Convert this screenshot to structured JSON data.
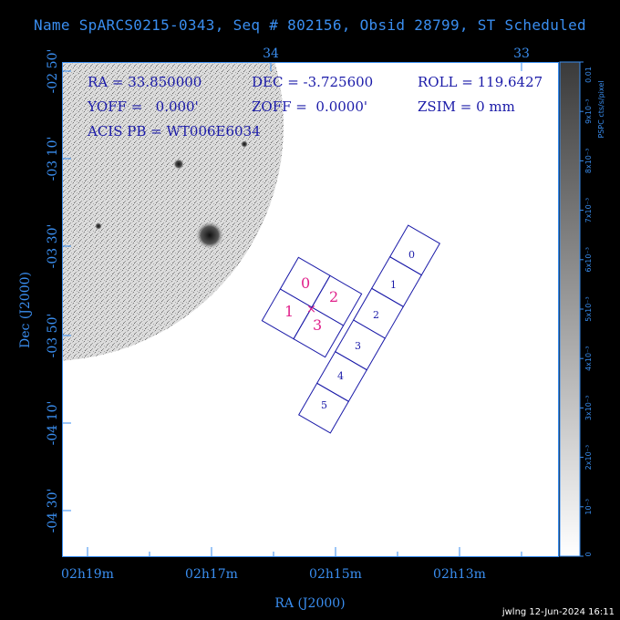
{
  "title": "Name SpARCS0215-0343, Seq # 802156, Obsid 28799, ST Scheduled",
  "info": {
    "ra": "RA = 33.850000",
    "dec": "DEC = -3.725600",
    "roll": "ROLL = 119.6427",
    "yoff": "YOFF =   0.000'",
    "zoff": "ZOFF =  0.0000'",
    "zsim": "ZSIM = 0 mm",
    "acis_pb": "ACIS PB = WT006E6034"
  },
  "axes": {
    "xlabel": "RA (J2000)",
    "ylabel": "Dec (J2000)",
    "x_ticks": [
      "02h19m",
      "02h17m",
      "02h15m",
      "02h13m"
    ],
    "top_ticks": [
      "34",
      "33"
    ],
    "y_ticks": [
      "-02 50'",
      "-03 10'",
      "-03 30'",
      "-03 50'",
      "-04 10'",
      "-04 30'"
    ]
  },
  "ccds": {
    "i_labels": [
      "0",
      "1",
      "2",
      "3"
    ],
    "s_labels": [
      "0",
      "1",
      "2",
      "3",
      "4",
      "5"
    ],
    "i_color": "#e0208a",
    "s_color": "#1a1aa8",
    "frame_color": "#1a1aa8"
  },
  "colorbar": {
    "unit": "PSPC cts/s/pixel",
    "labels": [
      "0",
      "10⁻³",
      "2x10⁻³",
      "3x10⁻³",
      "4x10⁻³",
      "5x10⁻³",
      "6x10⁻³",
      "7x10⁻³",
      "8x10⁻³",
      "9x10⁻³",
      "0.01"
    ]
  },
  "footer": "jwlng 12-Jun-2024 16:11",
  "colors": {
    "axis": "#3a8ef0",
    "text": "#1a1aa8",
    "background": "#000000"
  }
}
